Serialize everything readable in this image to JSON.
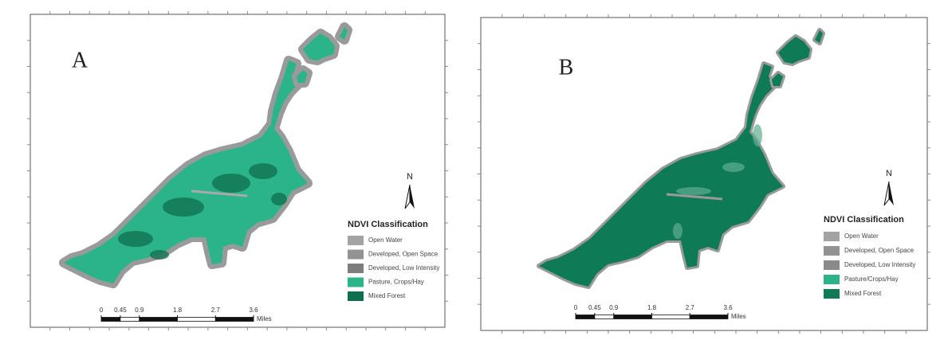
{
  "panels": [
    {
      "label": "A",
      "north": "N",
      "legend_title": "NDVI Classification",
      "legend": [
        {
          "label": "Open Water",
          "color": "#a3a3a3"
        },
        {
          "label": "Developed, Open Space",
          "color": "#939393"
        },
        {
          "label": "Developed, Low Intensity",
          "color": "#7d7d7d"
        },
        {
          "label": "Pasture, Crops/Hay",
          "color": "#2bb48a"
        },
        {
          "label": "Mixed Forest",
          "color": "#0f6e4d"
        }
      ],
      "scale": [
        0,
        0.45,
        0.9,
        1.8,
        2.7,
        3.6
      ],
      "scale_unit": "Miles"
    },
    {
      "label": "B",
      "north": "N",
      "legend_title": "NDVI Classification",
      "legend": [
        {
          "label": "Open Water",
          "color": "#a3a3a3"
        },
        {
          "label": "Developed, Open Space",
          "color": "#939393"
        },
        {
          "label": "Developed, Low Intensity",
          "color": "#8a8a8a"
        },
        {
          "label": "Pasture/Crops/Hay",
          "color": "#2bb48a"
        },
        {
          "label": "Mixed Forest",
          "color": "#0f7a56"
        }
      ],
      "scale": [
        0,
        0.45,
        0.9,
        1.8,
        2.7,
        3.6
      ],
      "scale_unit": "Miles"
    }
  ]
}
